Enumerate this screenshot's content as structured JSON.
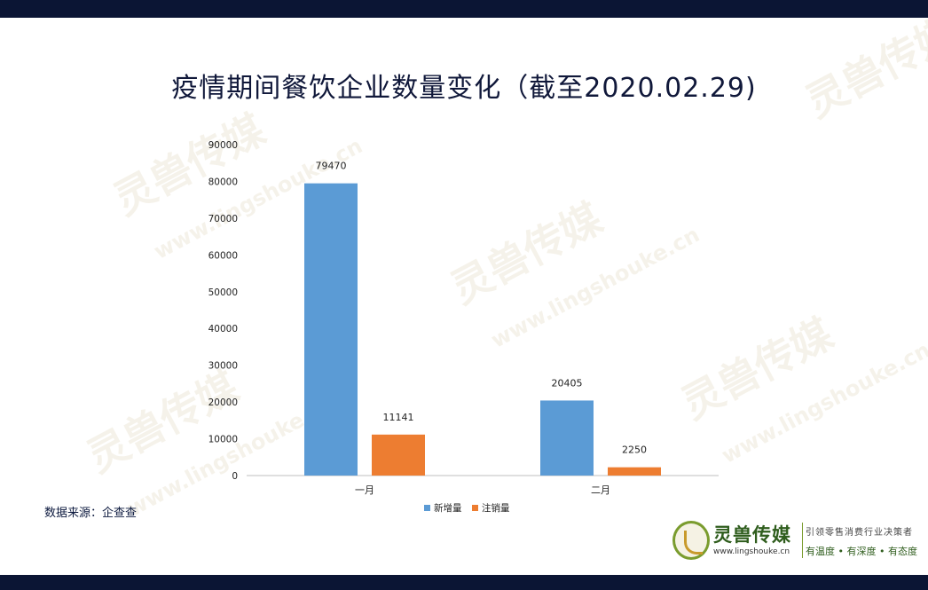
{
  "page": {
    "title": "疫情期间餐饮企业数量变化（截至2020.02.29)",
    "source": "数据来源：企查查"
  },
  "watermark": {
    "text": "灵兽传媒",
    "url": "www.lingshouke.cn"
  },
  "logo": {
    "name": "灵兽传媒",
    "url": "www.lingshouke.cn",
    "slogan": "引领零售消费行业决策者",
    "tagline": "有温度 • 有深度 • 有态度"
  },
  "colors": {
    "series_new": "#5b9bd5",
    "series_cancel": "#ed7d31",
    "header_bar": "#0b1534",
    "title_text": "#10183a"
  },
  "chart_data": {
    "type": "bar",
    "title": "疫情期间餐饮企业数量变化（截至2020.02.29)",
    "categories": [
      "一月",
      "二月"
    ],
    "series": [
      {
        "name": "新增量",
        "values": [
          79470,
          20405
        ],
        "labels": [
          "79470",
          "20405"
        ]
      },
      {
        "name": "注销量",
        "values": [
          11141,
          2250
        ],
        "labels": [
          "11141",
          "2250"
        ]
      }
    ],
    "ylim": [
      0,
      90000
    ],
    "yticks": [
      "0",
      "10000",
      "20000",
      "30000",
      "40000",
      "50000",
      "60000",
      "70000",
      "80000",
      "90000"
    ],
    "grid": false,
    "legend": "bottom"
  }
}
